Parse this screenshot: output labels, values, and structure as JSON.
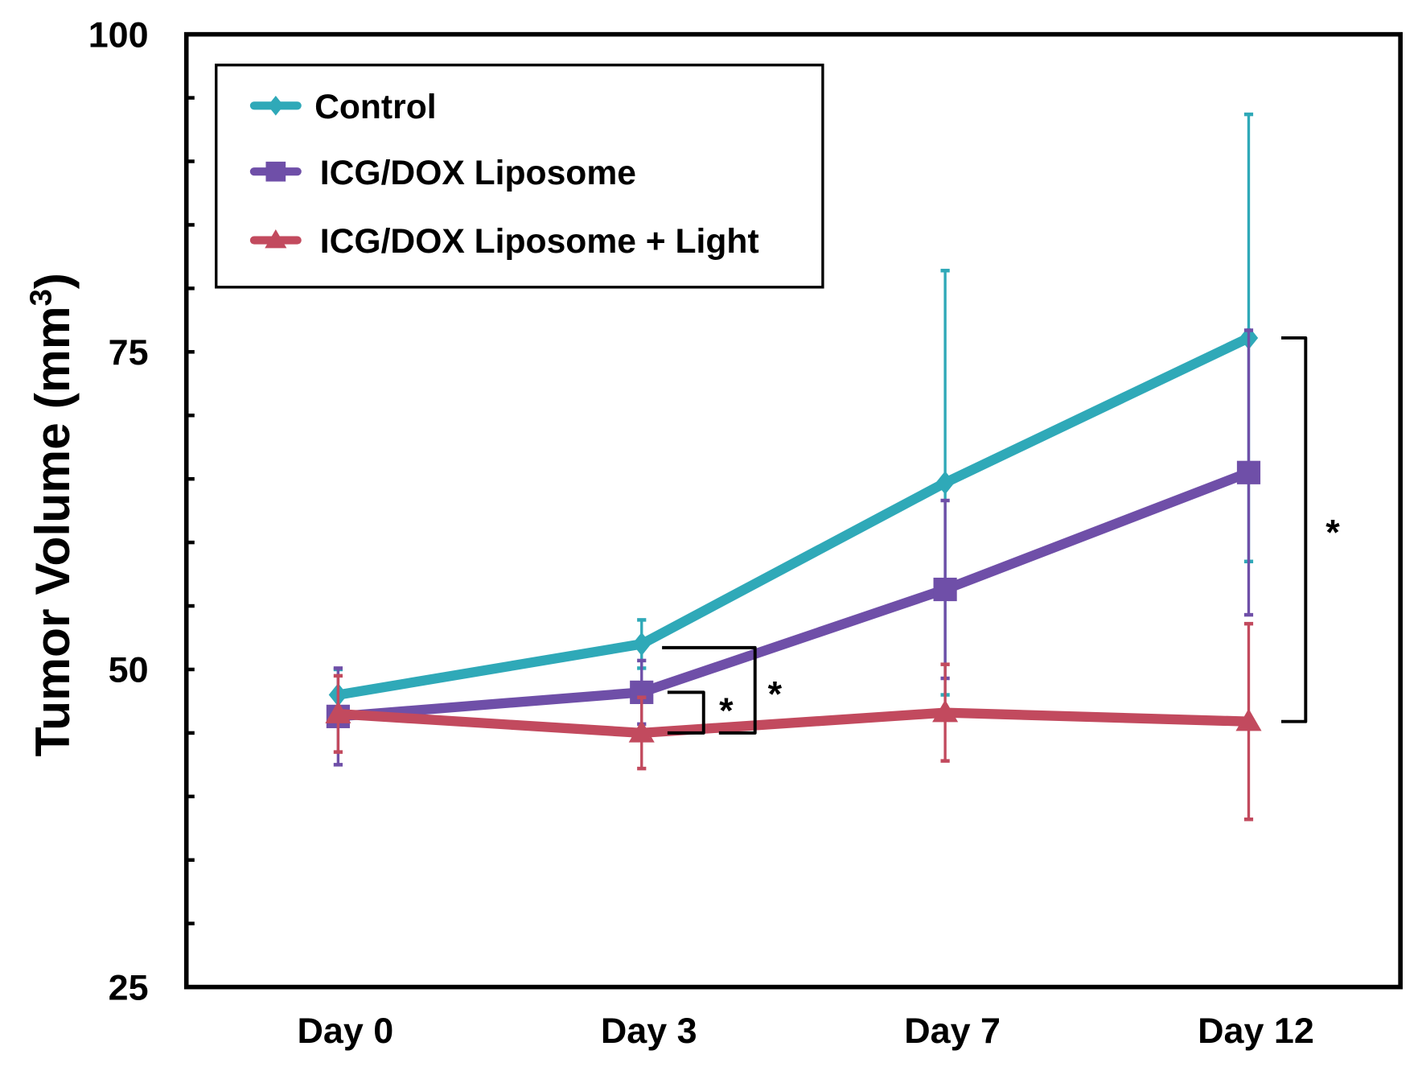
{
  "chart_data": {
    "type": "line",
    "title": "",
    "xlabel": "",
    "ylabel": "Tumor Volume (mm",
    "ylabel_superscript": "3",
    "ylabel_close": ")",
    "categories": [
      "Day 0",
      "Day 3",
      "Day 7",
      "Day 12"
    ],
    "ylim": [
      25,
      100
    ],
    "yticks": [
      25,
      50,
      75,
      100
    ],
    "yminor_step": 5,
    "grid": false,
    "legend_position": "top-left",
    "series": [
      {
        "name": "Control",
        "color": "#2fa9b8",
        "marker": "diamond",
        "values": [
          48.0,
          52.0,
          64.7,
          76.1
        ],
        "error": [
          2.0,
          1.9,
          16.7,
          17.6
        ]
      },
      {
        "name": "ICG/DOX Liposome",
        "color": "#6f4fa8",
        "marker": "square",
        "values": [
          46.3,
          48.2,
          56.3,
          65.5
        ],
        "error": [
          3.8,
          2.5,
          7.0,
          11.2
        ]
      },
      {
        "name": "ICG/DOX Liposome + Light",
        "color": "#c24a5e",
        "marker": "triangle",
        "values": [
          46.5,
          45.0,
          46.6,
          45.9
        ],
        "error": [
          3.0,
          2.8,
          3.8,
          7.7
        ]
      }
    ],
    "annotations": [
      {
        "text": "*",
        "category": "Day 3",
        "between": [
          "ICG/DOX Liposome",
          "ICG/DOX Liposome + Light"
        ]
      },
      {
        "text": "*",
        "category": "Day 3",
        "between": [
          "Control",
          "ICG/DOX Liposome + Light"
        ]
      },
      {
        "text": "*",
        "category": "Day 12",
        "between": [
          "Control",
          "ICG/DOX Liposome + Light"
        ]
      }
    ]
  }
}
